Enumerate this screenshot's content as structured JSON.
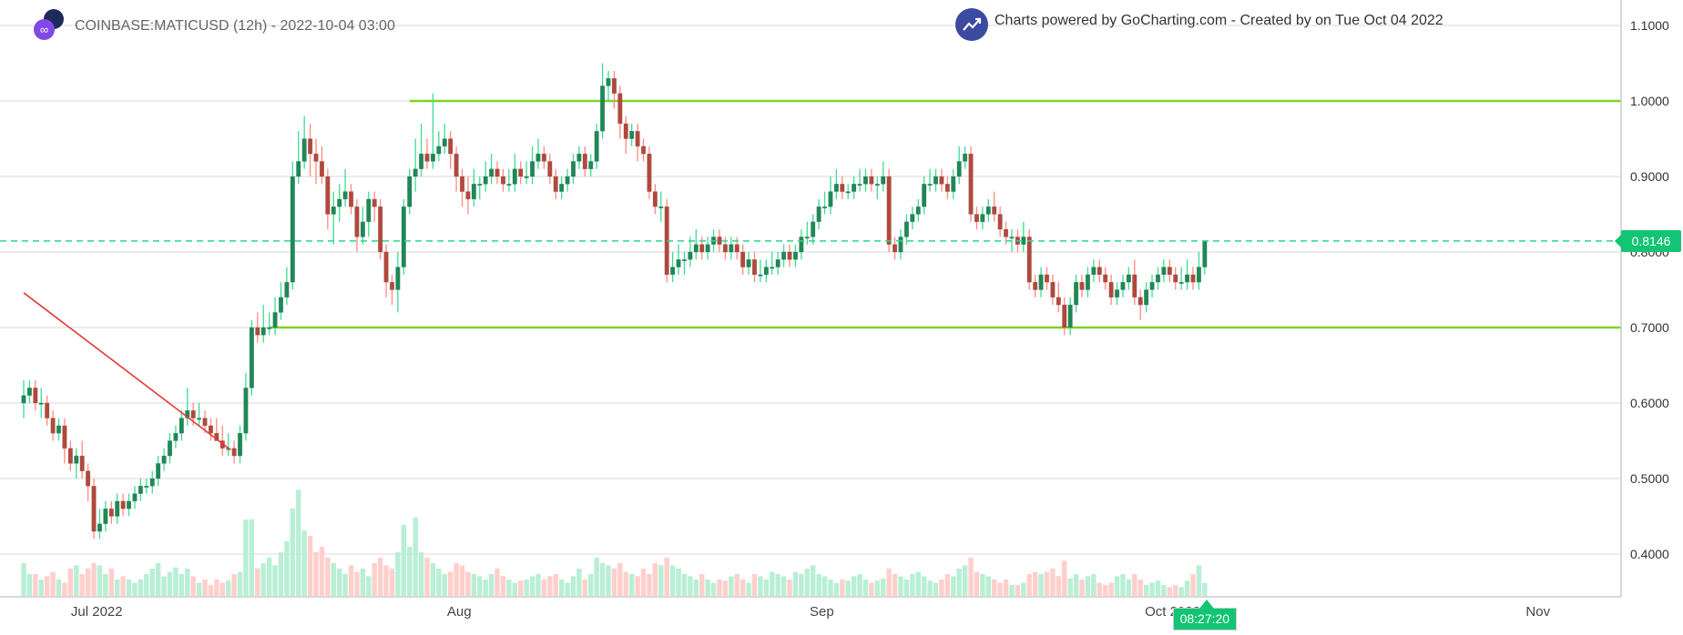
{
  "header": {
    "title": "COINBASE:MATICUSD (12h) - 2022-10-04 03:00",
    "credit": "Charts powered by GoCharting.com - Created by  on Tue Oct 04 2022",
    "logo_icon": "polygon-matic-logo",
    "credit_icon": "gocharting-trend-icon"
  },
  "colors": {
    "up_body": "#1b8a55",
    "up_wick": "#3ddc97",
    "down_body": "#b5473a",
    "down_wick": "#ff8a80",
    "up_volume": "#b8efd5",
    "down_volume": "#ffcfcc",
    "level_line": "#7ed321",
    "trend_line": "#e53935",
    "last_price": "#12c474",
    "grid": "#e6e6e6"
  },
  "chart_data": {
    "type": "candlestick",
    "title": "COINBASE:MATICUSD (12h)",
    "interval": "12h",
    "ylim": [
      0.34,
      1.11
    ],
    "y_ticks": [
      "1.1000",
      "1.0000",
      "0.9000",
      "0.8000",
      "0.7000",
      "0.6000",
      "0.5000",
      "0.4000"
    ],
    "y_tick_values": [
      1.1,
      1.0,
      0.9,
      0.8,
      0.7,
      0.6,
      0.5,
      0.4
    ],
    "x_ticks": [
      {
        "label": "Jul 2022",
        "candle": 12.5
      },
      {
        "label": "Aug",
        "candle": 74.5
      },
      {
        "label": "Sep",
        "candle": 136.5
      },
      {
        "label": "Oct 2022",
        "candle": 196.5
      },
      {
        "label": "Nov",
        "candle": 259.0
      }
    ],
    "x_range_candles": [
      -4,
      273
    ],
    "grid": "horizontal",
    "last_price": "0.8146",
    "last_price_value": 0.8146,
    "countdown": "08:27:20",
    "horizontal_levels": [
      {
        "price": 1.0,
        "from_candle": 66
      },
      {
        "price": 0.7,
        "from_candle": 42
      }
    ],
    "trend_line": {
      "from": {
        "candle": 0,
        "price": 0.746
      },
      "to": {
        "candle": 35.4,
        "price": 0.538
      }
    },
    "ohlc": [
      [
        0.6,
        0.63,
        0.58,
        0.61
      ],
      [
        0.61,
        0.63,
        0.6,
        0.62
      ],
      [
        0.62,
        0.63,
        0.59,
        0.6
      ],
      [
        0.6,
        0.62,
        0.58,
        0.6
      ],
      [
        0.6,
        0.61,
        0.57,
        0.58
      ],
      [
        0.58,
        0.59,
        0.55,
        0.56
      ],
      [
        0.56,
        0.58,
        0.55,
        0.57
      ],
      [
        0.57,
        0.58,
        0.52,
        0.54
      ],
      [
        0.54,
        0.55,
        0.51,
        0.52
      ],
      [
        0.52,
        0.54,
        0.5,
        0.53
      ],
      [
        0.53,
        0.55,
        0.5,
        0.51
      ],
      [
        0.51,
        0.52,
        0.47,
        0.49
      ],
      [
        0.49,
        0.5,
        0.42,
        0.43
      ],
      [
        0.43,
        0.46,
        0.42,
        0.44
      ],
      [
        0.44,
        0.47,
        0.43,
        0.46
      ],
      [
        0.46,
        0.47,
        0.44,
        0.45
      ],
      [
        0.45,
        0.48,
        0.44,
        0.47
      ],
      [
        0.47,
        0.48,
        0.45,
        0.46
      ],
      [
        0.46,
        0.48,
        0.45,
        0.47
      ],
      [
        0.47,
        0.49,
        0.46,
        0.48
      ],
      [
        0.48,
        0.5,
        0.47,
        0.49
      ],
      [
        0.49,
        0.5,
        0.48,
        0.49
      ],
      [
        0.49,
        0.51,
        0.48,
        0.5
      ],
      [
        0.5,
        0.53,
        0.49,
        0.52
      ],
      [
        0.52,
        0.54,
        0.51,
        0.53
      ],
      [
        0.53,
        0.56,
        0.52,
        0.55
      ],
      [
        0.55,
        0.57,
        0.54,
        0.56
      ],
      [
        0.56,
        0.59,
        0.55,
        0.58
      ],
      [
        0.58,
        0.62,
        0.57,
        0.59
      ],
      [
        0.59,
        0.6,
        0.57,
        0.58
      ],
      [
        0.58,
        0.6,
        0.57,
        0.58
      ],
      [
        0.58,
        0.59,
        0.56,
        0.57
      ],
      [
        0.57,
        0.58,
        0.55,
        0.56
      ],
      [
        0.56,
        0.58,
        0.55,
        0.55
      ],
      [
        0.55,
        0.57,
        0.53,
        0.54
      ],
      [
        0.54,
        0.56,
        0.53,
        0.54
      ],
      [
        0.54,
        0.55,
        0.52,
        0.53
      ],
      [
        0.53,
        0.57,
        0.52,
        0.56
      ],
      [
        0.56,
        0.64,
        0.55,
        0.62
      ],
      [
        0.62,
        0.71,
        0.61,
        0.7
      ],
      [
        0.7,
        0.72,
        0.68,
        0.69
      ],
      [
        0.69,
        0.73,
        0.68,
        0.7
      ],
      [
        0.7,
        0.72,
        0.69,
        0.7
      ],
      [
        0.7,
        0.74,
        0.69,
        0.72
      ],
      [
        0.72,
        0.76,
        0.71,
        0.74
      ],
      [
        0.74,
        0.78,
        0.73,
        0.76
      ],
      [
        0.76,
        0.92,
        0.75,
        0.9
      ],
      [
        0.9,
        0.96,
        0.89,
        0.92
      ],
      [
        0.92,
        0.98,
        0.91,
        0.95
      ],
      [
        0.95,
        0.97,
        0.9,
        0.93
      ],
      [
        0.93,
        0.95,
        0.89,
        0.92
      ],
      [
        0.92,
        0.94,
        0.89,
        0.9
      ],
      [
        0.9,
        0.91,
        0.83,
        0.85
      ],
      [
        0.85,
        0.88,
        0.81,
        0.86
      ],
      [
        0.86,
        0.89,
        0.84,
        0.87
      ],
      [
        0.87,
        0.91,
        0.86,
        0.88
      ],
      [
        0.88,
        0.89,
        0.85,
        0.86
      ],
      [
        0.86,
        0.87,
        0.8,
        0.82
      ],
      [
        0.82,
        0.86,
        0.81,
        0.84
      ],
      [
        0.84,
        0.88,
        0.82,
        0.87
      ],
      [
        0.87,
        0.88,
        0.84,
        0.86
      ],
      [
        0.86,
        0.87,
        0.79,
        0.8
      ],
      [
        0.8,
        0.81,
        0.74,
        0.76
      ],
      [
        0.76,
        0.77,
        0.73,
        0.75
      ],
      [
        0.75,
        0.8,
        0.72,
        0.78
      ],
      [
        0.78,
        0.87,
        0.77,
        0.86
      ],
      [
        0.86,
        0.91,
        0.85,
        0.9
      ],
      [
        0.9,
        0.95,
        0.88,
        0.91
      ],
      [
        0.91,
        0.97,
        0.9,
        0.93
      ],
      [
        0.93,
        0.95,
        0.91,
        0.92
      ],
      [
        0.92,
        1.01,
        0.91,
        0.93
      ],
      [
        0.93,
        0.96,
        0.92,
        0.94
      ],
      [
        0.94,
        0.97,
        0.93,
        0.95
      ],
      [
        0.95,
        0.96,
        0.91,
        0.93
      ],
      [
        0.93,
        0.94,
        0.88,
        0.9
      ],
      [
        0.9,
        0.91,
        0.86,
        0.88
      ],
      [
        0.88,
        0.9,
        0.85,
        0.87
      ],
      [
        0.87,
        0.91,
        0.86,
        0.89
      ],
      [
        0.89,
        0.9,
        0.87,
        0.89
      ],
      [
        0.89,
        0.92,
        0.88,
        0.9
      ],
      [
        0.9,
        0.93,
        0.89,
        0.91
      ],
      [
        0.91,
        0.92,
        0.89,
        0.9
      ],
      [
        0.9,
        0.91,
        0.88,
        0.89
      ],
      [
        0.89,
        0.91,
        0.88,
        0.89
      ],
      [
        0.89,
        0.93,
        0.88,
        0.91
      ],
      [
        0.91,
        0.92,
        0.89,
        0.9
      ],
      [
        0.9,
        0.92,
        0.89,
        0.9
      ],
      [
        0.9,
        0.94,
        0.89,
        0.92
      ],
      [
        0.92,
        0.95,
        0.91,
        0.93
      ],
      [
        0.93,
        0.94,
        0.91,
        0.92
      ],
      [
        0.92,
        0.93,
        0.89,
        0.9
      ],
      [
        0.9,
        0.91,
        0.87,
        0.88
      ],
      [
        0.88,
        0.9,
        0.87,
        0.89
      ],
      [
        0.89,
        0.91,
        0.88,
        0.9
      ],
      [
        0.9,
        0.93,
        0.89,
        0.92
      ],
      [
        0.92,
        0.94,
        0.91,
        0.93
      ],
      [
        0.93,
        0.94,
        0.9,
        0.91
      ],
      [
        0.91,
        0.93,
        0.9,
        0.92
      ],
      [
        0.92,
        0.97,
        0.91,
        0.96
      ],
      [
        0.96,
        1.05,
        0.95,
        1.02
      ],
      [
        1.02,
        1.04,
        1.0,
        1.03
      ],
      [
        1.03,
        1.04,
        0.99,
        1.01
      ],
      [
        1.01,
        1.02,
        0.95,
        0.97
      ],
      [
        0.97,
        0.98,
        0.93,
        0.95
      ],
      [
        0.95,
        0.97,
        0.94,
        0.96
      ],
      [
        0.96,
        0.97,
        0.92,
        0.94
      ],
      [
        0.94,
        0.95,
        0.92,
        0.93
      ],
      [
        0.93,
        0.94,
        0.87,
        0.88
      ],
      [
        0.88,
        0.89,
        0.85,
        0.86
      ],
      [
        0.86,
        0.88,
        0.84,
        0.86
      ],
      [
        0.86,
        0.87,
        0.76,
        0.77
      ],
      [
        0.77,
        0.8,
        0.76,
        0.78
      ],
      [
        0.78,
        0.81,
        0.77,
        0.79
      ],
      [
        0.79,
        0.8,
        0.77,
        0.79
      ],
      [
        0.79,
        0.82,
        0.78,
        0.8
      ],
      [
        0.8,
        0.83,
        0.79,
        0.81
      ],
      [
        0.81,
        0.82,
        0.79,
        0.8
      ],
      [
        0.8,
        0.82,
        0.79,
        0.81
      ],
      [
        0.81,
        0.83,
        0.8,
        0.82
      ],
      [
        0.82,
        0.83,
        0.8,
        0.81
      ],
      [
        0.81,
        0.82,
        0.79,
        0.8
      ],
      [
        0.8,
        0.82,
        0.79,
        0.81
      ],
      [
        0.81,
        0.82,
        0.79,
        0.8
      ],
      [
        0.8,
        0.81,
        0.77,
        0.78
      ],
      [
        0.78,
        0.8,
        0.77,
        0.79
      ],
      [
        0.79,
        0.8,
        0.76,
        0.77
      ],
      [
        0.77,
        0.79,
        0.76,
        0.77
      ],
      [
        0.77,
        0.79,
        0.76,
        0.78
      ],
      [
        0.78,
        0.8,
        0.77,
        0.78
      ],
      [
        0.78,
        0.8,
        0.77,
        0.79
      ],
      [
        0.79,
        0.81,
        0.78,
        0.8
      ],
      [
        0.8,
        0.81,
        0.78,
        0.79
      ],
      [
        0.79,
        0.81,
        0.78,
        0.8
      ],
      [
        0.8,
        0.83,
        0.79,
        0.82
      ],
      [
        0.82,
        0.84,
        0.81,
        0.82
      ],
      [
        0.82,
        0.85,
        0.81,
        0.84
      ],
      [
        0.84,
        0.87,
        0.83,
        0.86
      ],
      [
        0.86,
        0.88,
        0.85,
        0.86
      ],
      [
        0.86,
        0.9,
        0.85,
        0.88
      ],
      [
        0.88,
        0.91,
        0.87,
        0.89
      ],
      [
        0.89,
        0.9,
        0.87,
        0.88
      ],
      [
        0.88,
        0.89,
        0.87,
        0.88
      ],
      [
        0.88,
        0.9,
        0.87,
        0.89
      ],
      [
        0.89,
        0.91,
        0.88,
        0.89
      ],
      [
        0.89,
        0.91,
        0.88,
        0.9
      ],
      [
        0.9,
        0.91,
        0.88,
        0.89
      ],
      [
        0.89,
        0.9,
        0.87,
        0.89
      ],
      [
        0.89,
        0.92,
        0.88,
        0.9
      ],
      [
        0.9,
        0.91,
        0.8,
        0.81
      ],
      [
        0.81,
        0.82,
        0.79,
        0.8
      ],
      [
        0.8,
        0.83,
        0.79,
        0.82
      ],
      [
        0.82,
        0.85,
        0.81,
        0.84
      ],
      [
        0.84,
        0.86,
        0.83,
        0.85
      ],
      [
        0.85,
        0.87,
        0.84,
        0.86
      ],
      [
        0.86,
        0.9,
        0.85,
        0.89
      ],
      [
        0.89,
        0.91,
        0.88,
        0.89
      ],
      [
        0.89,
        0.91,
        0.88,
        0.9
      ],
      [
        0.9,
        0.91,
        0.88,
        0.89
      ],
      [
        0.89,
        0.9,
        0.87,
        0.88
      ],
      [
        0.88,
        0.91,
        0.87,
        0.9
      ],
      [
        0.9,
        0.94,
        0.89,
        0.92
      ],
      [
        0.92,
        0.94,
        0.91,
        0.93
      ],
      [
        0.93,
        0.94,
        0.84,
        0.85
      ],
      [
        0.85,
        0.86,
        0.83,
        0.84
      ],
      [
        0.84,
        0.86,
        0.83,
        0.85
      ],
      [
        0.85,
        0.87,
        0.84,
        0.86
      ],
      [
        0.86,
        0.88,
        0.84,
        0.85
      ],
      [
        0.85,
        0.86,
        0.82,
        0.83
      ],
      [
        0.83,
        0.84,
        0.81,
        0.82
      ],
      [
        0.82,
        0.83,
        0.8,
        0.82
      ],
      [
        0.82,
        0.83,
        0.8,
        0.81
      ],
      [
        0.81,
        0.84,
        0.8,
        0.82
      ],
      [
        0.82,
        0.83,
        0.75,
        0.76
      ],
      [
        0.76,
        0.77,
        0.74,
        0.75
      ],
      [
        0.75,
        0.78,
        0.74,
        0.77
      ],
      [
        0.77,
        0.78,
        0.75,
        0.76
      ],
      [
        0.76,
        0.77,
        0.73,
        0.74
      ],
      [
        0.74,
        0.76,
        0.72,
        0.73
      ],
      [
        0.73,
        0.74,
        0.69,
        0.7
      ],
      [
        0.7,
        0.74,
        0.69,
        0.73
      ],
      [
        0.73,
        0.77,
        0.72,
        0.76
      ],
      [
        0.76,
        0.77,
        0.74,
        0.75
      ],
      [
        0.75,
        0.78,
        0.74,
        0.77
      ],
      [
        0.77,
        0.79,
        0.76,
        0.78
      ],
      [
        0.78,
        0.79,
        0.76,
        0.77
      ],
      [
        0.77,
        0.78,
        0.75,
        0.76
      ],
      [
        0.76,
        0.77,
        0.73,
        0.74
      ],
      [
        0.74,
        0.76,
        0.73,
        0.75
      ],
      [
        0.75,
        0.77,
        0.74,
        0.76
      ],
      [
        0.76,
        0.78,
        0.75,
        0.77
      ],
      [
        0.77,
        0.79,
        0.73,
        0.74
      ],
      [
        0.74,
        0.75,
        0.71,
        0.73
      ],
      [
        0.73,
        0.76,
        0.72,
        0.75
      ],
      [
        0.75,
        0.77,
        0.74,
        0.76
      ],
      [
        0.76,
        0.78,
        0.75,
        0.77
      ],
      [
        0.77,
        0.79,
        0.76,
        0.78
      ],
      [
        0.78,
        0.79,
        0.76,
        0.77
      ],
      [
        0.77,
        0.78,
        0.75,
        0.76
      ],
      [
        0.76,
        0.78,
        0.75,
        0.76
      ],
      [
        0.76,
        0.79,
        0.75,
        0.77
      ],
      [
        0.77,
        0.78,
        0.75,
        0.76
      ],
      [
        0.76,
        0.8,
        0.75,
        0.78
      ],
      [
        0.78,
        0.8146,
        0.77,
        0.8146
      ]
    ],
    "volume": [
      30,
      20,
      20,
      15,
      18,
      22,
      15,
      12,
      25,
      28,
      20,
      25,
      30,
      28,
      20,
      25,
      15,
      18,
      15,
      12,
      15,
      20,
      25,
      30,
      18,
      22,
      26,
      20,
      25,
      18,
      12,
      15,
      10,
      15,
      12,
      14,
      20,
      22,
      70,
      70,
      25,
      30,
      35,
      28,
      40,
      50,
      80,
      97,
      60,
      55,
      40,
      45,
      35,
      30,
      25,
      20,
      28,
      22,
      25,
      18,
      30,
      35,
      28,
      25,
      40,
      65,
      45,
      72,
      40,
      35,
      30,
      25,
      20,
      22,
      30,
      28,
      22,
      20,
      18,
      15,
      20,
      25,
      18,
      15,
      12,
      14,
      15,
      18,
      20,
      15,
      18,
      20,
      15,
      12,
      18,
      25,
      15,
      20,
      35,
      30,
      28,
      25,
      30,
      22,
      20,
      18,
      25,
      20,
      30,
      28,
      35,
      28,
      25,
      20,
      18,
      15,
      20,
      15,
      12,
      15,
      14,
      18,
      20,
      15,
      12,
      20,
      18,
      15,
      22,
      20,
      18,
      15,
      22,
      20,
      25,
      28,
      20,
      18,
      15,
      12,
      15,
      14,
      18,
      20,
      15,
      12,
      14,
      16,
      25,
      20,
      18,
      15,
      20,
      22,
      18,
      14,
      12,
      15,
      20,
      18,
      25,
      28,
      35,
      22,
      20,
      18,
      15,
      12,
      15,
      10,
      10,
      12,
      20,
      22,
      20,
      22,
      25,
      18,
      32,
      16,
      20,
      15,
      18,
      20,
      12,
      10,
      12,
      18,
      20,
      15,
      20,
      15,
      10,
      12,
      14,
      10,
      8,
      10,
      8,
      14,
      20,
      28,
      12
    ]
  }
}
